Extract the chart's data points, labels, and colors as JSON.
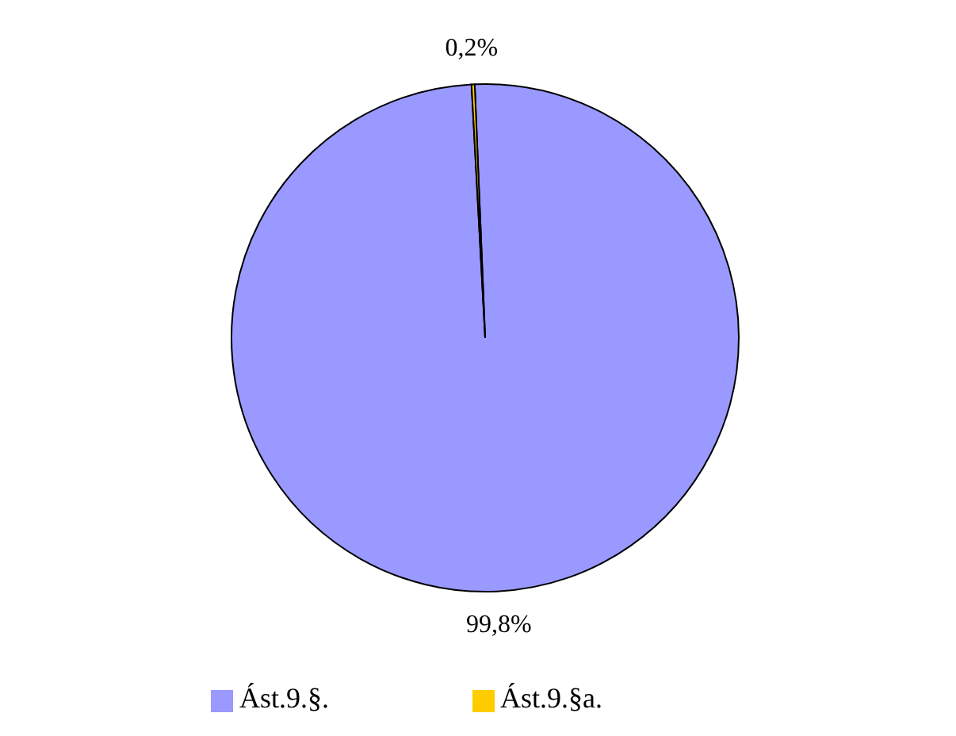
{
  "chart_data": {
    "type": "pie",
    "categories": [
      "Ást.9.§.",
      "Ást.9.§a."
    ],
    "values": [
      99.8,
      0.2
    ],
    "colors": [
      "#9999ff",
      "#ffcc00"
    ],
    "value_labels": [
      "99,8%",
      "0,2%"
    ],
    "legend": "bottom"
  }
}
